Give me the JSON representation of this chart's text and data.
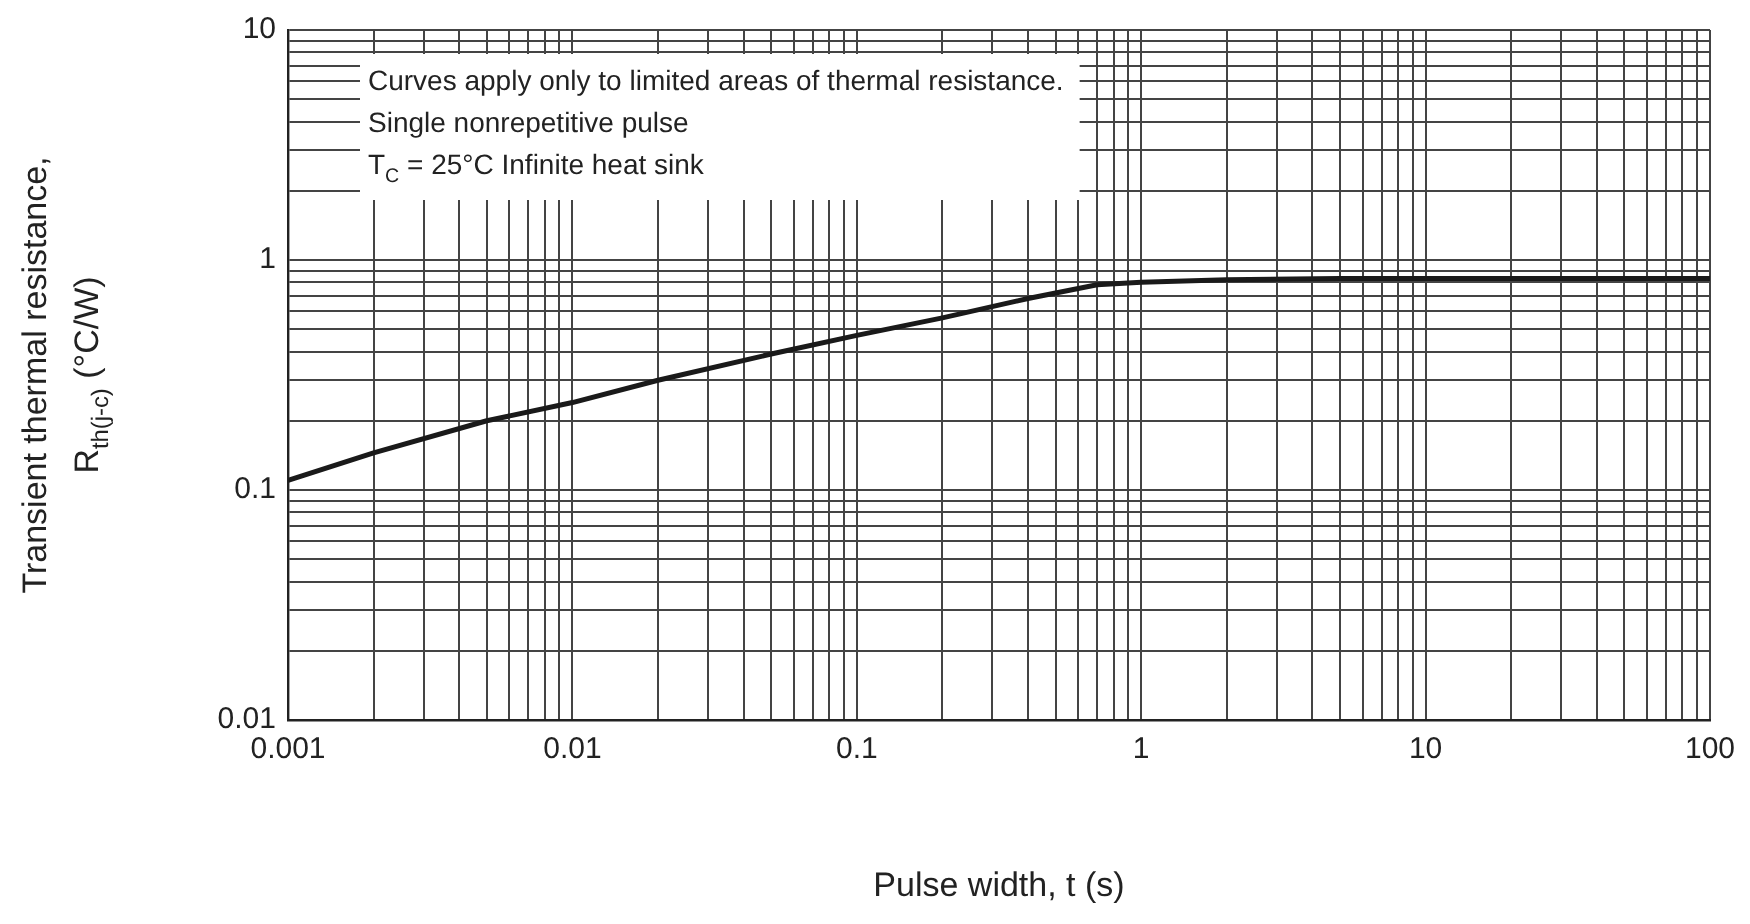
{
  "chart_data": {
    "type": "line",
    "xlabel": "Pulse width, t (s)",
    "ylabel": "Transient thermal resistance,\nR$_{th(j-c)}$ (°C/W)",
    "annotations": [
      "Curves apply only to limited areas of thermal resistance.",
      "Single nonrepetitive pulse",
      "T$_{C}$ = 25°C Infinite heat sink"
    ],
    "log": "xy",
    "grid": true,
    "legend": false,
    "marker": "none",
    "line_style": "solid",
    "xlim": [
      0.001,
      100
    ],
    "ylim": [
      0.01,
      10
    ],
    "xticks": [
      0.001,
      {
        "value": 0.002,
        "label": null
      },
      {
        "value": 0.003,
        "label": null
      },
      {
        "value": 0.004,
        "label": null
      },
      {
        "value": 0.005,
        "label": null
      },
      {
        "value": 0.006,
        "label": null
      },
      {
        "value": 0.007,
        "label": null
      },
      {
        "value": 0.008,
        "label": null
      },
      {
        "value": 0.009,
        "label": null
      },
      0.01,
      {
        "value": 0.02,
        "label": null
      },
      {
        "value": 0.03,
        "label": null
      },
      {
        "value": 0.04,
        "label": null
      },
      {
        "value": 0.05,
        "label": null
      },
      {
        "value": 0.06,
        "label": null
      },
      {
        "value": 0.07,
        "label": null
      },
      {
        "value": 0.08,
        "label": null
      },
      {
        "value": 0.09,
        "label": null
      },
      0.1,
      {
        "value": 0.2,
        "label": null
      },
      {
        "value": 0.3,
        "label": null
      },
      {
        "value": 0.4,
        "label": null
      },
      {
        "value": 0.5,
        "label": null
      },
      {
        "value": 0.6,
        "label": null
      },
      {
        "value": 0.7,
        "label": null
      },
      {
        "value": 0.8,
        "label": null
      },
      {
        "value": 0.9,
        "label": null
      },
      1,
      {
        "value": 2,
        "label": null
      },
      {
        "value": 3,
        "label": null
      },
      {
        "value": 4,
        "label": null
      },
      {
        "value": 5,
        "label": null
      },
      {
        "value": 6,
        "label": null
      },
      {
        "value": 7,
        "label": null
      },
      {
        "value": 8,
        "label": null
      },
      {
        "value": 9,
        "label": null
      },
      10,
      {
        "value": 20,
        "label": null
      },
      {
        "value": 30,
        "label": null
      },
      {
        "value": 40,
        "label": null
      },
      {
        "value": 50,
        "label": null
      },
      {
        "value": 60,
        "label": null
      },
      {
        "value": 70,
        "label": null
      },
      {
        "value": 80,
        "label": null
      },
      {
        "value": 90,
        "label": null
      },
      100
    ],
    "yticks": [
      0.01,
      {
        "value": 0.02,
        "label": null
      },
      {
        "value": 0.03,
        "label": null
      },
      {
        "value": 0.04,
        "label": null
      },
      {
        "value": 0.05,
        "label": null
      },
      {
        "value": 0.06,
        "label": null
      },
      {
        "value": 0.07,
        "label": null
      },
      {
        "value": 0.08,
        "label": null
      },
      {
        "value": 0.09,
        "label": null
      },
      0.1,
      {
        "value": 0.2,
        "label": null
      },
      {
        "value": 0.3,
        "label": null
      },
      {
        "value": 0.4,
        "label": null
      },
      {
        "value": 0.5,
        "label": null
      },
      {
        "value": 0.6,
        "label": null
      },
      {
        "value": 0.7,
        "label": null
      },
      {
        "value": 0.8,
        "label": null
      },
      {
        "value": 0.9,
        "label": null
      },
      1,
      {
        "value": 2,
        "label": null
      },
      {
        "value": 3,
        "label": null
      },
      {
        "value": 4,
        "label": null
      },
      {
        "value": 5,
        "label": null
      },
      {
        "value": 6,
        "label": null
      },
      {
        "value": 7,
        "label": null
      },
      {
        "value": 8,
        "label": null
      },
      {
        "value": 9,
        "label": null
      },
      10
    ],
    "series": [
      {
        "color": "#1a1a1a",
        "x": [
          0.001,
          0.002,
          0.005,
          0.01,
          0.02,
          0.05,
          0.1,
          0.2,
          0.4,
          0.7,
          1,
          2,
          5,
          100
        ],
        "values": [
          0.11,
          0.145,
          0.2,
          0.24,
          0.3,
          0.39,
          0.47,
          0.56,
          0.68,
          0.78,
          0.8,
          0.82,
          0.83,
          0.83
        ]
      }
    ]
  }
}
